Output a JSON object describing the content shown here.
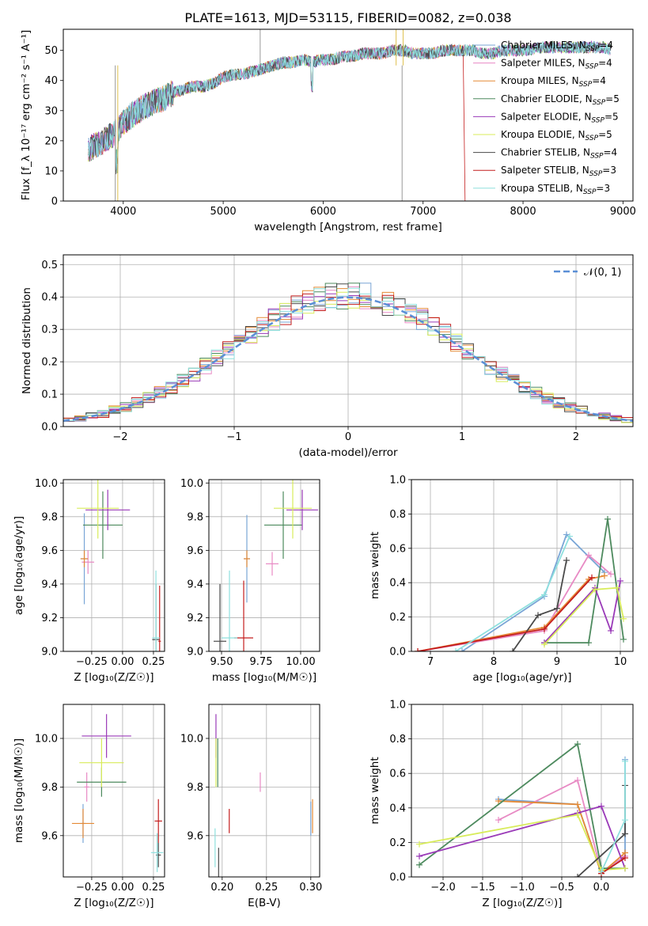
{
  "title": "PLATE=1613, MJD=53115, FIBERID=0082, z=0.038",
  "models": [
    {
      "name": "Chabrier MILES",
      "nssp": "4",
      "color": "#7aa6d6"
    },
    {
      "name": "Salpeter MILES",
      "nssp": "4",
      "color": "#e88ac4"
    },
    {
      "name": "Kroupa MILES",
      "nssp": "4",
      "color": "#e58a36"
    },
    {
      "name": "Chabrier ELODIE",
      "nssp": "5",
      "color": "#4d8a5e"
    },
    {
      "name": "Salpeter ELODIE",
      "nssp": "5",
      "color": "#9a3ab8"
    },
    {
      "name": "Kroupa ELODIE",
      "nssp": "5",
      "color": "#d8ec5a"
    },
    {
      "name": "Chabrier STELIB",
      "nssp": "4",
      "color": "#4a4a4a"
    },
    {
      "name": "Salpeter STELIB",
      "nssp": "3",
      "color": "#c41e1e"
    },
    {
      "name": "Kroupa STELIB",
      "nssp": "3",
      "color": "#8fe0de"
    }
  ],
  "chart_data": [
    {
      "id": "spectrum",
      "type": "line",
      "xlabel": "wavelength [Angstrom, rest frame]",
      "ylabel": "Flux [f_λ 10⁻¹⁷ erg cm⁻² s⁻¹ A⁻¹]",
      "xlim": [
        3400,
        9100
      ],
      "ylim": [
        0,
        57
      ],
      "xticks": [
        "4000",
        "5000",
        "6000",
        "7000",
        "8000",
        "9000"
      ],
      "yticks": [
        "0",
        "10",
        "20",
        "30",
        "40",
        "50"
      ],
      "grid": false,
      "legend": "right",
      "x": [
        3650,
        3700,
        3800,
        3900,
        4000,
        4100,
        4200,
        4300,
        4400,
        4500,
        4600,
        4700,
        4800,
        4900,
        5000,
        5100,
        5200,
        5300,
        5400,
        5500,
        5600,
        5700,
        5800,
        5900,
        6000,
        6100,
        6200,
        6300,
        6400,
        6500,
        6600,
        6700,
        6800,
        6900,
        7000,
        7100,
        7200,
        7300,
        7400,
        7500,
        7600,
        7700,
        7800,
        7900,
        8000,
        8200,
        8400,
        8600,
        8800,
        8900
      ],
      "values": [
        17,
        18,
        20,
        22,
        26,
        29,
        31,
        33,
        34,
        36,
        37,
        38,
        38,
        39,
        41,
        42,
        42,
        43,
        44,
        45,
        46,
        46,
        47,
        46,
        47,
        47,
        48,
        48,
        49,
        49,
        49,
        50,
        50,
        49,
        49,
        49,
        50,
        50,
        50,
        50,
        49,
        49,
        50,
        50,
        50,
        51,
        51,
        51,
        51,
        50
      ]
    },
    {
      "id": "residuals",
      "type": "line",
      "xlabel": "(data-model)/error",
      "ylabel": "Normed distribution",
      "xlim": [
        -2.5,
        2.5
      ],
      "ylim": [
        0,
        0.53
      ],
      "xticks": [
        "−2",
        "−1",
        "0",
        "1",
        "2"
      ],
      "yticks": [
        "0.0",
        "0.1",
        "0.2",
        "0.3",
        "0.4",
        "0.5"
      ],
      "grid": true,
      "legend": "top-right",
      "curve_label": "𝒩(0, 1)"
    },
    {
      "id": "age-vs-z",
      "type": "scatter",
      "xlabel": "Z [log₁₀(Z/Z☉)]",
      "ylabel": "age  [log₁₀(age/yr)]",
      "xlim": [
        -0.48,
        0.34
      ],
      "ylim": [
        9.0,
        10.02
      ],
      "xticks": [
        "−0.25",
        "0.00",
        "0.25"
      ],
      "yticks": [
        "9.0",
        "9.2",
        "9.4",
        "9.6",
        "9.8",
        "10.0"
      ],
      "grid": true,
      "points": [
        {
          "model": 0,
          "x": -0.31,
          "y": 9.55,
          "xerr": 0.03,
          "yerr": 0.27
        },
        {
          "model": 1,
          "x": -0.28,
          "y": 9.53,
          "xerr": 0.05,
          "yerr": 0.07
        },
        {
          "model": 2,
          "x": -0.31,
          "y": 9.55,
          "xerr": 0.03,
          "yerr": 0.05
        },
        {
          "model": 3,
          "x": -0.16,
          "y": 9.75,
          "xerr": 0.16,
          "yerr": 0.2
        },
        {
          "model": 4,
          "x": -0.12,
          "y": 9.84,
          "xerr": 0.18,
          "yerr": 0.12
        },
        {
          "model": 5,
          "x": -0.2,
          "y": 9.85,
          "xerr": 0.17,
          "yerr": 0.18
        },
        {
          "model": 6,
          "x": 0.27,
          "y": 9.07,
          "xerr": 0.03,
          "yerr": 0.33
        },
        {
          "model": 7,
          "x": 0.3,
          "y": 9.06,
          "xerr": 0.01,
          "yerr": 0.33
        },
        {
          "model": 8,
          "x": 0.27,
          "y": 9.08,
          "xerr": 0.03,
          "yerr": 0.4
        }
      ]
    },
    {
      "id": "age-vs-mass",
      "type": "scatter",
      "xlabel": "mass [log₁₀(M/M☉)]",
      "ylabel": "",
      "xlim": [
        9.42,
        10.12
      ],
      "ylim": [
        9.0,
        10.02
      ],
      "xticks": [
        "9.50",
        "9.75",
        "10.00"
      ],
      "yticks": [
        "9.0",
        "9.2",
        "9.4",
        "9.6",
        "9.8",
        "10.0"
      ],
      "grid": true,
      "points": [
        {
          "model": 0,
          "x": 9.66,
          "y": 9.55,
          "xerr": 0.02,
          "yerr": 0.26
        },
        {
          "model": 1,
          "x": 9.82,
          "y": 9.52,
          "xerr": 0.04,
          "yerr": 0.07
        },
        {
          "model": 2,
          "x": 9.66,
          "y": 9.55,
          "xerr": 0.02,
          "yerr": 0.05
        },
        {
          "model": 3,
          "x": 9.89,
          "y": 9.75,
          "xerr": 0.12,
          "yerr": 0.2
        },
        {
          "model": 4,
          "x": 10.01,
          "y": 9.84,
          "xerr": 0.1,
          "yerr": 0.12
        },
        {
          "model": 5,
          "x": 9.95,
          "y": 9.85,
          "xerr": 0.12,
          "yerr": 0.18
        },
        {
          "model": 6,
          "x": 9.49,
          "y": 9.06,
          "xerr": 0.04,
          "yerr": 0.34
        },
        {
          "model": 7,
          "x": 9.64,
          "y": 9.08,
          "xerr": 0.06,
          "yerr": 0.34
        },
        {
          "model": 8,
          "x": 9.55,
          "y": 9.08,
          "xerr": 0.05,
          "yerr": 0.4
        }
      ]
    },
    {
      "id": "weight-vs-age",
      "type": "line",
      "xlabel": "age  [log₁₀(age/yr)]",
      "ylabel": "mass weight",
      "xlim": [
        6.7,
        10.2
      ],
      "ylim": [
        0.0,
        1.0
      ],
      "xticks": [
        "7",
        "8",
        "9",
        "10"
      ],
      "yticks": [
        "0.0",
        "0.2",
        "0.4",
        "0.6",
        "0.8",
        "1.0"
      ],
      "grid": true,
      "series": [
        {
          "model": 0,
          "x": [
            7.5,
            8.8,
            9.15,
            9.75
          ],
          "y": [
            0.0,
            0.32,
            0.68,
            0.46
          ]
        },
        {
          "model": 1,
          "x": [
            6.8,
            8.8,
            9.5,
            9.85
          ],
          "y": [
            0.0,
            0.12,
            0.56,
            0.45
          ]
        },
        {
          "model": 2,
          "x": [
            6.8,
            8.8,
            9.5,
            9.75
          ],
          "y": [
            0.0,
            0.14,
            0.42,
            0.44
          ]
        },
        {
          "model": 3,
          "x": [
            8.8,
            9.5,
            9.8,
            10.05
          ],
          "y": [
            0.05,
            0.05,
            0.77,
            0.07
          ]
        },
        {
          "model": 4,
          "x": [
            8.8,
            9.6,
            9.85,
            10.0
          ],
          "y": [
            0.05,
            0.37,
            0.12,
            0.41
          ]
        },
        {
          "model": 5,
          "x": [
            8.8,
            9.6,
            9.95,
            10.05
          ],
          "y": [
            0.04,
            0.36,
            0.37,
            0.19
          ]
        },
        {
          "model": 6,
          "x": [
            8.3,
            8.7,
            9.0,
            9.15
          ],
          "y": [
            0.0,
            0.21,
            0.25,
            0.53
          ]
        },
        {
          "model": 7,
          "x": [
            6.8,
            8.8,
            9.55
          ],
          "y": [
            0.0,
            0.13,
            0.43
          ]
        },
        {
          "model": 8,
          "x": [
            7.4,
            8.8,
            9.2
          ],
          "y": [
            0.0,
            0.33,
            0.67
          ]
        }
      ]
    },
    {
      "id": "mass-vs-z",
      "type": "scatter",
      "xlabel": "Z [log₁₀(Z/Z☉)]",
      "ylabel": "mass [log₁₀(M/M☉)]",
      "xlim": [
        -0.48,
        0.34
      ],
      "ylim": [
        9.43,
        10.14
      ],
      "xticks": [
        "−0.25",
        "0.00",
        "0.25"
      ],
      "yticks": [
        "9.6",
        "9.8",
        "10.0"
      ],
      "grid": true,
      "points": [
        {
          "model": 0,
          "x": -0.32,
          "y": 9.65,
          "xerr": 0.02,
          "yerr": 0.08
        },
        {
          "model": 1,
          "x": -0.29,
          "y": 9.8,
          "xerr": 0.02,
          "yerr": 0.06
        },
        {
          "model": 2,
          "x": -0.32,
          "y": 9.65,
          "xerr": 0.09,
          "yerr": 0.06
        },
        {
          "model": 3,
          "x": -0.17,
          "y": 9.82,
          "xerr": 0.2,
          "yerr": 0.06
        },
        {
          "model": 4,
          "x": -0.13,
          "y": 10.01,
          "xerr": 0.2,
          "yerr": 0.09
        },
        {
          "model": 5,
          "x": -0.17,
          "y": 9.9,
          "xerr": 0.18,
          "yerr": 0.1
        },
        {
          "model": 6,
          "x": 0.29,
          "y": 9.52,
          "xerr": 0.02,
          "yerr": 0.05
        },
        {
          "model": 7,
          "x": 0.29,
          "y": 9.66,
          "xerr": 0.03,
          "yerr": 0.09
        },
        {
          "model": 8,
          "x": 0.28,
          "y": 9.53,
          "xerr": 0.05,
          "yerr": 0.08
        }
      ]
    },
    {
      "id": "mass-vs-ebv",
      "type": "scatter",
      "xlabel": "E(B-V)",
      "ylabel": "",
      "xlim": [
        0.185,
        0.31
      ],
      "ylim": [
        9.43,
        10.14
      ],
      "xticks": [
        "0.20",
        "0.25",
        "0.30"
      ],
      "yticks": [
        "9.6",
        "9.8",
        "10.0"
      ],
      "grid": true,
      "points": [
        {
          "model": 0,
          "x": 0.3,
          "y": 9.67,
          "xerr": 0,
          "yerr": 0.07
        },
        {
          "model": 1,
          "x": 0.243,
          "y": 9.82,
          "xerr": 0,
          "yerr": 0.04
        },
        {
          "model": 2,
          "x": 0.302,
          "y": 9.68,
          "xerr": 0,
          "yerr": 0.07
        },
        {
          "model": 3,
          "x": 0.195,
          "y": 9.9,
          "xerr": 0,
          "yerr": 0.1
        },
        {
          "model": 4,
          "x": 0.193,
          "y": 10.01,
          "xerr": 0,
          "yerr": 0.09
        },
        {
          "model": 5,
          "x": 0.193,
          "y": 9.9,
          "xerr": 0,
          "yerr": 0.1
        },
        {
          "model": 6,
          "x": 0.196,
          "y": 9.48,
          "xerr": 0,
          "yerr": 0.07
        },
        {
          "model": 7,
          "x": 0.208,
          "y": 9.66,
          "xerr": 0,
          "yerr": 0.05
        },
        {
          "model": 8,
          "x": 0.192,
          "y": 9.55,
          "xerr": 0,
          "yerr": 0.08
        }
      ]
    },
    {
      "id": "weight-vs-z",
      "type": "line",
      "xlabel": "Z [log₁₀(Z/Z☉)]",
      "ylabel": "mass weight",
      "xlim": [
        -2.4,
        0.4
      ],
      "ylim": [
        0.0,
        1.0
      ],
      "xticks": [
        "−2.0",
        "−1.5",
        "−1.0",
        "−0.5",
        "0.0"
      ],
      "yticks": [
        "0.0",
        "0.2",
        "0.4",
        "0.6",
        "0.8",
        "1.0"
      ],
      "grid": true,
      "series": [
        {
          "model": 0,
          "x": [
            -1.3,
            -0.3,
            0.0,
            0.3,
            0.3
          ],
          "y": [
            0.45,
            0.42,
            0.02,
            0.12,
            0.68
          ]
        },
        {
          "model": 1,
          "x": [
            -1.3,
            -0.3,
            0.0,
            0.3
          ],
          "y": [
            0.33,
            0.56,
            0.03,
            0.12
          ]
        },
        {
          "model": 2,
          "x": [
            -1.3,
            -0.3,
            0.0,
            0.3
          ],
          "y": [
            0.44,
            0.42,
            0.02,
            0.14
          ]
        },
        {
          "model": 3,
          "x": [
            -2.3,
            -0.3,
            0.0,
            0.3
          ],
          "y": [
            0.07,
            0.77,
            0.05,
            0.05
          ]
        },
        {
          "model": 4,
          "x": [
            -2.3,
            -0.3,
            0.0,
            0.3
          ],
          "y": [
            0.12,
            0.37,
            0.41,
            0.05
          ]
        },
        {
          "model": 5,
          "x": [
            -2.3,
            -0.3,
            0.0,
            0.3
          ],
          "y": [
            0.19,
            0.36,
            0.04,
            0.05
          ]
        },
        {
          "model": 6,
          "x": [
            -0.3,
            0.3,
            0.3
          ],
          "y": [
            0.0,
            0.25,
            0.53
          ]
        },
        {
          "model": 7,
          "x": [
            0.0,
            0.3
          ],
          "y": [
            0.02,
            0.11
          ]
        },
        {
          "model": 8,
          "x": [
            0.0,
            0.3,
            0.3
          ],
          "y": [
            0.03,
            0.33,
            0.67
          ]
        }
      ]
    }
  ]
}
